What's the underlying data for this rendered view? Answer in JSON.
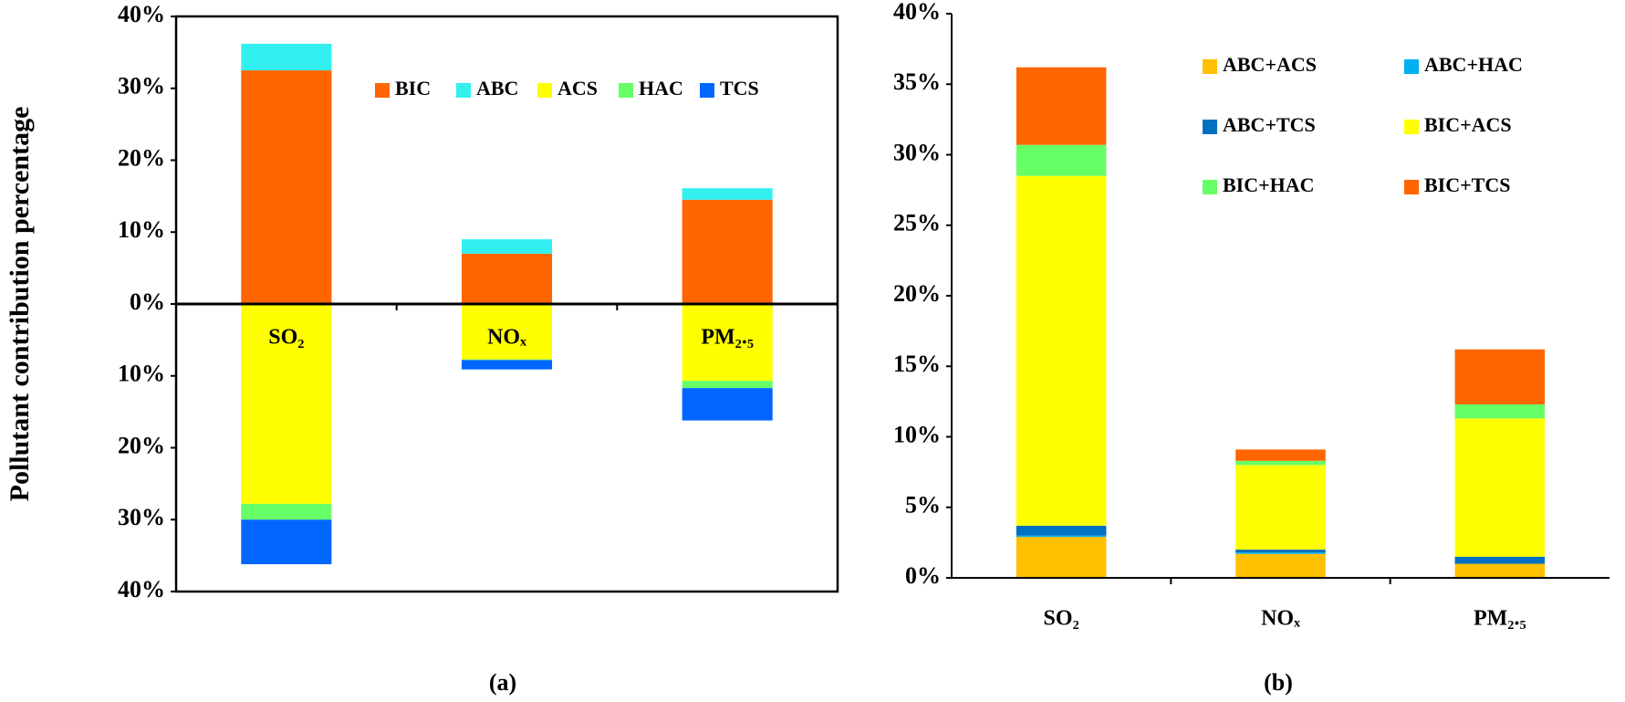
{
  "chart_data": [
    {
      "type": "bar",
      "stacked": true,
      "caption": "(a)",
      "y_label": "Pollutant  contribution  percentage",
      "categories": [
        "SO₂",
        "NOₓ",
        "PM₂.₅"
      ],
      "series": [
        {
          "name": "BIC",
          "color": "#ff6600",
          "values": [
            32.5,
            7.0,
            14.5
          ]
        },
        {
          "name": "ABC",
          "color": "#33f0f0",
          "values": [
            3.7,
            2.0,
            1.6
          ]
        },
        {
          "name": "ACS",
          "color": "#ffff00",
          "values": [
            -27.8,
            -7.7,
            -10.7
          ]
        },
        {
          "name": "HAC",
          "color": "#66ff66",
          "values": [
            -2.2,
            -0.1,
            -1.0
          ]
        },
        {
          "name": "TCS",
          "color": "#0066ff",
          "values": [
            -6.2,
            -1.3,
            -4.5
          ]
        }
      ],
      "ylim": [
        -40,
        40
      ],
      "yticks": [
        {
          "value": 40,
          "label": "40%"
        },
        {
          "value": 30,
          "label": "30%"
        },
        {
          "value": 20,
          "label": "20%"
        },
        {
          "value": 10,
          "label": "10%"
        },
        {
          "value": 0,
          "label": "0%"
        },
        {
          "value": -10,
          "label": "10%"
        },
        {
          "value": -20,
          "label": "20%"
        },
        {
          "value": -30,
          "label": "30%"
        },
        {
          "value": -40,
          "label": "40%"
        }
      ],
      "legend": "upper right"
    },
    {
      "type": "bar",
      "stacked": true,
      "caption": "(b)",
      "categories": [
        "SO₂",
        "NOₓ",
        "PM₂.₅"
      ],
      "series": [
        {
          "name": "ABC+ACS",
          "color": "#ffc000",
          "values": [
            2.9,
            1.7,
            1.0
          ]
        },
        {
          "name": "ABC+HAC",
          "color": "#00b0f0",
          "values": [
            0.1,
            0.1,
            0.0
          ]
        },
        {
          "name": "ABC+TCS",
          "color": "#0070c0",
          "values": [
            0.7,
            0.2,
            0.5
          ]
        },
        {
          "name": "BIC+ACS",
          "color": "#ffff00",
          "values": [
            24.8,
            6.0,
            9.8
          ]
        },
        {
          "name": "BIC+HAC",
          "color": "#66ff66",
          "values": [
            2.2,
            0.3,
            1.0
          ]
        },
        {
          "name": "BIC+TCS",
          "color": "#ff6600",
          "values": [
            5.5,
            0.8,
            3.9
          ]
        }
      ],
      "ylim": [
        0,
        40
      ],
      "yticks": [
        {
          "value": 0,
          "label": "0%"
        },
        {
          "value": 5,
          "label": "5%"
        },
        {
          "value": 10,
          "label": "10%"
        },
        {
          "value": 15,
          "label": "15%"
        },
        {
          "value": 20,
          "label": "20%"
        },
        {
          "value": 25,
          "label": "25%"
        },
        {
          "value": 30,
          "label": "30%"
        },
        {
          "value": 35,
          "label": "35%"
        },
        {
          "value": 40,
          "label": "40%"
        }
      ],
      "legend": "upper right"
    }
  ]
}
